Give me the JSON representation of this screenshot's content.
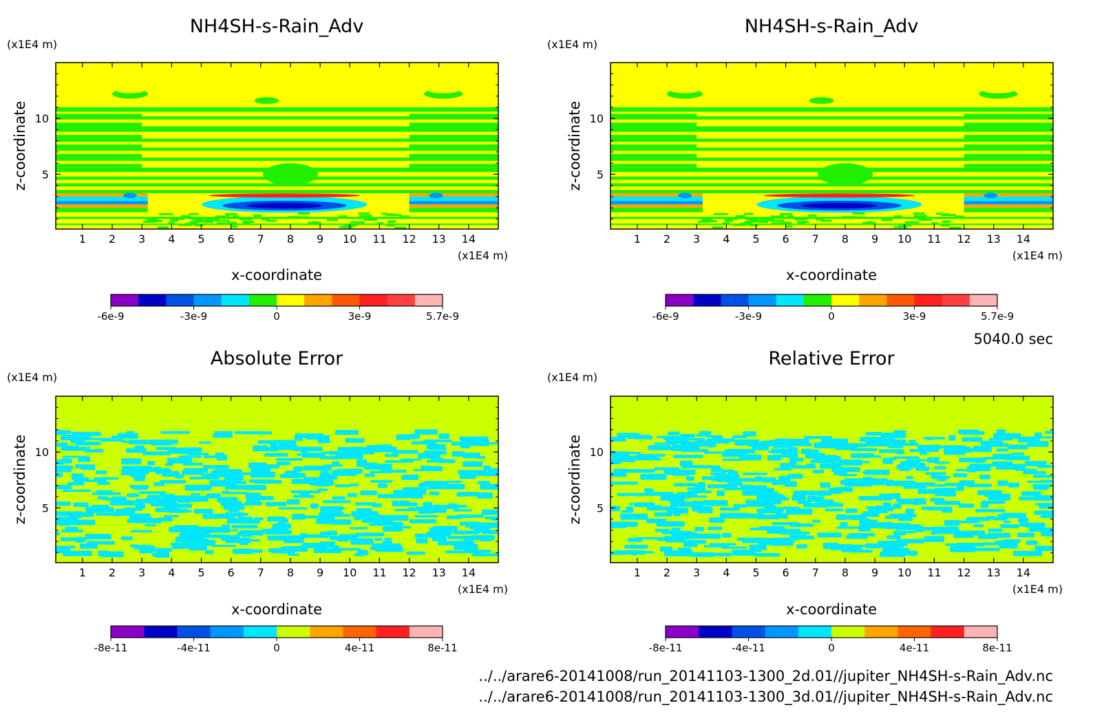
{
  "time_label": "5040.0 sec",
  "footer": {
    "line1": "../../arare6-20141008/run_20141103-1300_2d.01//jupiter_NH4SH-s-Rain_Adv.nc",
    "line2": "../../arare6-20141008/run_20141103-1300_3d.01//jupiter_NH4SH-s-Rain_Adv.nc"
  },
  "chart_data": [
    {
      "type": "heatmap",
      "title": "NH4SH-s-Rain_Adv",
      "xlabel": "x-coordinate",
      "ylabel": "z-coordinate",
      "x_unit": "(x1E4 m)",
      "y_unit": "(x1E4 m)",
      "xlim": [
        0.1,
        15
      ],
      "ylim": [
        0.1,
        15
      ],
      "x_ticks": [
        1,
        2,
        3,
        4,
        5,
        6,
        7,
        8,
        9,
        10,
        11,
        12,
        13,
        14
      ],
      "y_ticks": [
        5,
        10
      ],
      "pattern": "field",
      "colorbar": {
        "colors": [
          "#8a00c8",
          "#0000c8",
          "#0050e6",
          "#0096ff",
          "#00e6ff",
          "#22ee00",
          "#ffff00",
          "#ffa500",
          "#ff5a00",
          "#ff2020",
          "#ff4040",
          "#ffb4b4"
        ],
        "tick_labels": [
          "-6e-9",
          "-3e-9",
          "0",
          "3e-9",
          "5.7e-9"
        ]
      }
    },
    {
      "type": "heatmap",
      "title": "NH4SH-s-Rain_Adv",
      "xlabel": "x-coordinate",
      "ylabel": "z-coordinate",
      "x_unit": "(x1E4 m)",
      "y_unit": "(x1E4 m)",
      "xlim": [
        0.1,
        15
      ],
      "ylim": [
        0.1,
        15
      ],
      "x_ticks": [
        1,
        2,
        3,
        4,
        5,
        6,
        7,
        8,
        9,
        10,
        11,
        12,
        13,
        14
      ],
      "y_ticks": [
        5,
        10
      ],
      "pattern": "field",
      "colorbar": {
        "colors": [
          "#8a00c8",
          "#0000c8",
          "#0050e6",
          "#0096ff",
          "#00e6ff",
          "#22ee00",
          "#ffff00",
          "#ffa500",
          "#ff5a00",
          "#ff2020",
          "#ff4040",
          "#ffb4b4"
        ],
        "tick_labels": [
          "-6e-9",
          "-3e-9",
          "0",
          "3e-9",
          "5.7e-9"
        ]
      }
    },
    {
      "type": "heatmap",
      "title": "Absolute Error",
      "xlabel": "x-coordinate",
      "ylabel": "z-coordinate",
      "x_unit": "(x1E4 m)",
      "y_unit": "(x1E4 m)",
      "xlim": [
        0.1,
        15
      ],
      "ylim": [
        0.1,
        15
      ],
      "x_ticks": [
        1,
        2,
        3,
        4,
        5,
        6,
        7,
        8,
        9,
        10,
        11,
        12,
        13,
        14
      ],
      "y_ticks": [
        5,
        10
      ],
      "pattern": "noise",
      "seed": 7,
      "colorbar": {
        "colors": [
          "#8a00c8",
          "#0000c8",
          "#0050e6",
          "#0096ff",
          "#00e6ff",
          "#ccff00",
          "#ffa500",
          "#ff6400",
          "#ff2020",
          "#ffb4b4"
        ],
        "tick_labels": [
          "-8e-11",
          "-4e-11",
          "0",
          "4e-11",
          "8e-11"
        ]
      }
    },
    {
      "type": "heatmap",
      "title": "Relative Error",
      "xlabel": "x-coordinate",
      "ylabel": "z-coordinate",
      "x_unit": "(x1E4 m)",
      "y_unit": "(x1E4 m)",
      "xlim": [
        0.1,
        15
      ],
      "ylim": [
        0.1,
        15
      ],
      "x_ticks": [
        1,
        2,
        3,
        4,
        5,
        6,
        7,
        8,
        9,
        10,
        11,
        12,
        13,
        14
      ],
      "y_ticks": [
        5,
        10
      ],
      "pattern": "noise",
      "seed": 19,
      "colorbar": {
        "colors": [
          "#8a00c8",
          "#0000c8",
          "#0050e6",
          "#0096ff",
          "#00e6ff",
          "#ccff00",
          "#ffa500",
          "#ff6400",
          "#ff2020",
          "#ffb4b4"
        ],
        "tick_labels": [
          "-8e-11",
          "-4e-11",
          "0",
          "4e-11",
          "8e-11"
        ]
      }
    }
  ]
}
